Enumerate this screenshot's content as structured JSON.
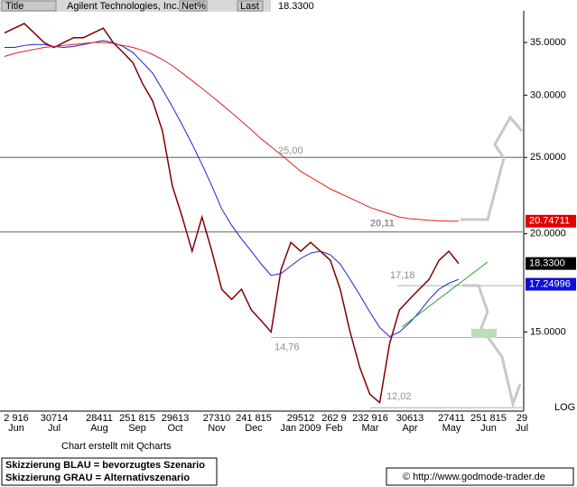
{
  "header": {
    "title_tab": "Title",
    "company": "Agilent Technologies, Inc.",
    "net_tab": "Net%",
    "last_tab": "Last",
    "last_value": "18.3300"
  },
  "chart_data": {
    "type": "line",
    "log_scale": true,
    "ylim": [
      11.9,
      38.4
    ],
    "yticks": [
      {
        "value": 15,
        "label": "15.0000"
      },
      {
        "value": 20,
        "label": "20.0000"
      },
      {
        "value": 25,
        "label": "25.0000"
      },
      {
        "value": 30,
        "label": "30.0000"
      },
      {
        "value": 35,
        "label": "35.0000"
      }
    ],
    "x_day_labels": [
      "2 916",
      "30714",
      "28411",
      "251 815",
      "29613",
      "27310",
      "241 815",
      "29512",
      "262 9",
      "232 916",
      "30613",
      "27411",
      "251 815",
      "29"
    ],
    "x_month_labels": [
      "Jun",
      "Jul",
      "Aug",
      "Sep",
      "Oct",
      "Nov",
      "Dec",
      "Jan 2009",
      "Feb",
      "Mar",
      "Apr",
      "May",
      "Jun",
      "Jul"
    ],
    "series": [
      {
        "color": "#800000",
        "values": [
          36,
          36.5,
          37,
          36,
          35,
          34.5,
          35,
          35.5,
          35.5,
          36,
          36.5,
          35,
          34,
          33,
          31,
          29.5,
          27,
          23,
          21,
          19,
          21,
          19,
          17,
          16.5,
          17,
          16,
          15.5,
          15,
          18,
          19.5,
          19,
          19.5,
          19,
          18.5,
          17,
          15,
          13.5,
          12.5,
          12.2,
          14.5,
          16,
          16.5,
          17,
          17.5,
          18.5,
          19,
          18.33
        ]
      },
      {
        "color": "#2020d0",
        "values": [
          34.5,
          34.5,
          34.7,
          34.8,
          34.8,
          34.6,
          34.5,
          34.6,
          34.8,
          35,
          35.2,
          35,
          34.6,
          34,
          33,
          32,
          30.5,
          29,
          27.5,
          26,
          24.5,
          23,
          21.5,
          20.5,
          19.7,
          19,
          18.3,
          17.7,
          17.8,
          18.2,
          18.6,
          18.9,
          19,
          18.8,
          18.3,
          17.5,
          16.7,
          15.9,
          15.2,
          14.8,
          15,
          15.4,
          15.9,
          16.5,
          17,
          17.3,
          17.5
        ]
      },
      {
        "color": "#e02020",
        "values": [
          33.6,
          33.9,
          34.1,
          34.3,
          34.5,
          34.6,
          34.7,
          34.8,
          34.9,
          35,
          35,
          34.9,
          34.7,
          34.5,
          34.2,
          33.8,
          33.3,
          32.7,
          32,
          31.3,
          30.6,
          29.9,
          29.2,
          28.5,
          27.8,
          27.1,
          26.4,
          25.8,
          25.2,
          24.6,
          24,
          23.6,
          23.2,
          22.8,
          22.5,
          22.2,
          21.9,
          21.6,
          21.4,
          21.2,
          21,
          20.9,
          20.85,
          20.8,
          20.77,
          20.75,
          20.75
        ]
      }
    ],
    "levels": [
      {
        "value": 25,
        "label": "25,00"
      },
      {
        "value": 20.11,
        "label": "20,11"
      },
      {
        "value": 17.18,
        "label": "17,18"
      },
      {
        "value": 14.76,
        "label": "14,76"
      },
      {
        "value": 12.02,
        "label": "12,02"
      }
    ],
    "last_boxes": [
      {
        "value": 20.74711,
        "color": "#e00000"
      },
      {
        "value": 18.33,
        "label": "18.3300",
        "color": "#000000"
      },
      {
        "value": 17.24996,
        "color": "#1010d0"
      }
    ],
    "scale_label": "LOG"
  },
  "footer": {
    "credit": "Chart erstellt mit Qcharts",
    "legend_blue": "Skizzierung BLAU = bevorzugtes Szenario",
    "legend_grey": "Skizzierung GRAU = Alternativszenario",
    "url": "© http://www.godmode-trader.de"
  }
}
